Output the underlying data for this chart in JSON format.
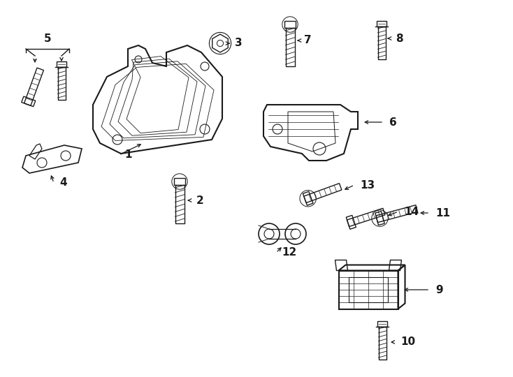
{
  "background_color": "#ffffff",
  "line_color": "#1a1a1a",
  "figure_width": 7.34,
  "figure_height": 5.4,
  "dpi": 100,
  "label_fontsize": 11
}
